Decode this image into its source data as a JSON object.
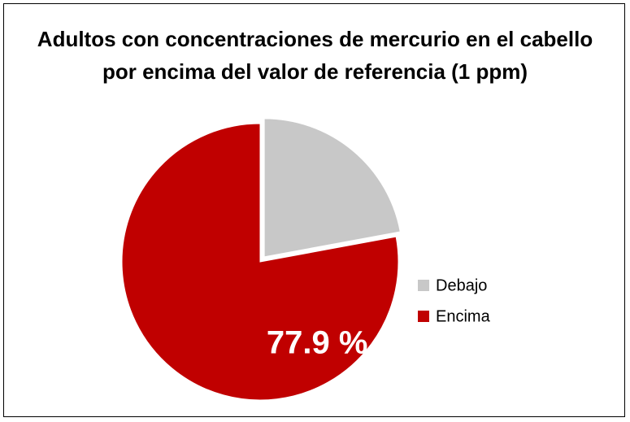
{
  "chart_data": {
    "type": "pie",
    "title": "Adultos con concentraciones de mercurio en el cabello\npor encima del valor de referencia (1 ppm)",
    "categories": [
      "Debajo",
      "Encima"
    ],
    "values": [
      22.1,
      77.9
    ],
    "value_labels": [
      null,
      "77.9 %"
    ],
    "colors": [
      "#c8c8c8",
      "#c00000"
    ],
    "exploded": [
      true,
      false
    ],
    "legend": "right"
  }
}
